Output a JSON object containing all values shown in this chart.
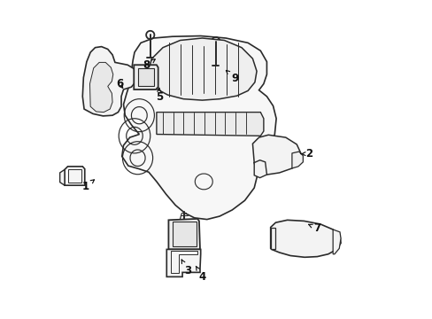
{
  "bg_color": "#ffffff",
  "line_color": "#2a2a2a",
  "fig_width": 4.89,
  "fig_height": 3.6,
  "dpi": 100,
  "label_fs": 8.5,
  "labels": {
    "1": [
      0.085,
      0.415,
      0.115,
      0.438
    ],
    "2": [
      0.795,
      0.518,
      0.76,
      0.518
    ],
    "3": [
      0.408,
      0.148,
      0.388,
      0.185
    ],
    "4": [
      0.455,
      0.128,
      0.43,
      0.17
    ],
    "5": [
      0.318,
      0.698,
      0.318,
      0.73
    ],
    "6": [
      0.192,
      0.74,
      0.21,
      0.718
    ],
    "7": [
      0.82,
      0.282,
      0.79,
      0.295
    ],
    "8": [
      0.278,
      0.798,
      0.308,
      0.82
    ],
    "9": [
      0.558,
      0.758,
      0.528,
      0.785
    ]
  }
}
